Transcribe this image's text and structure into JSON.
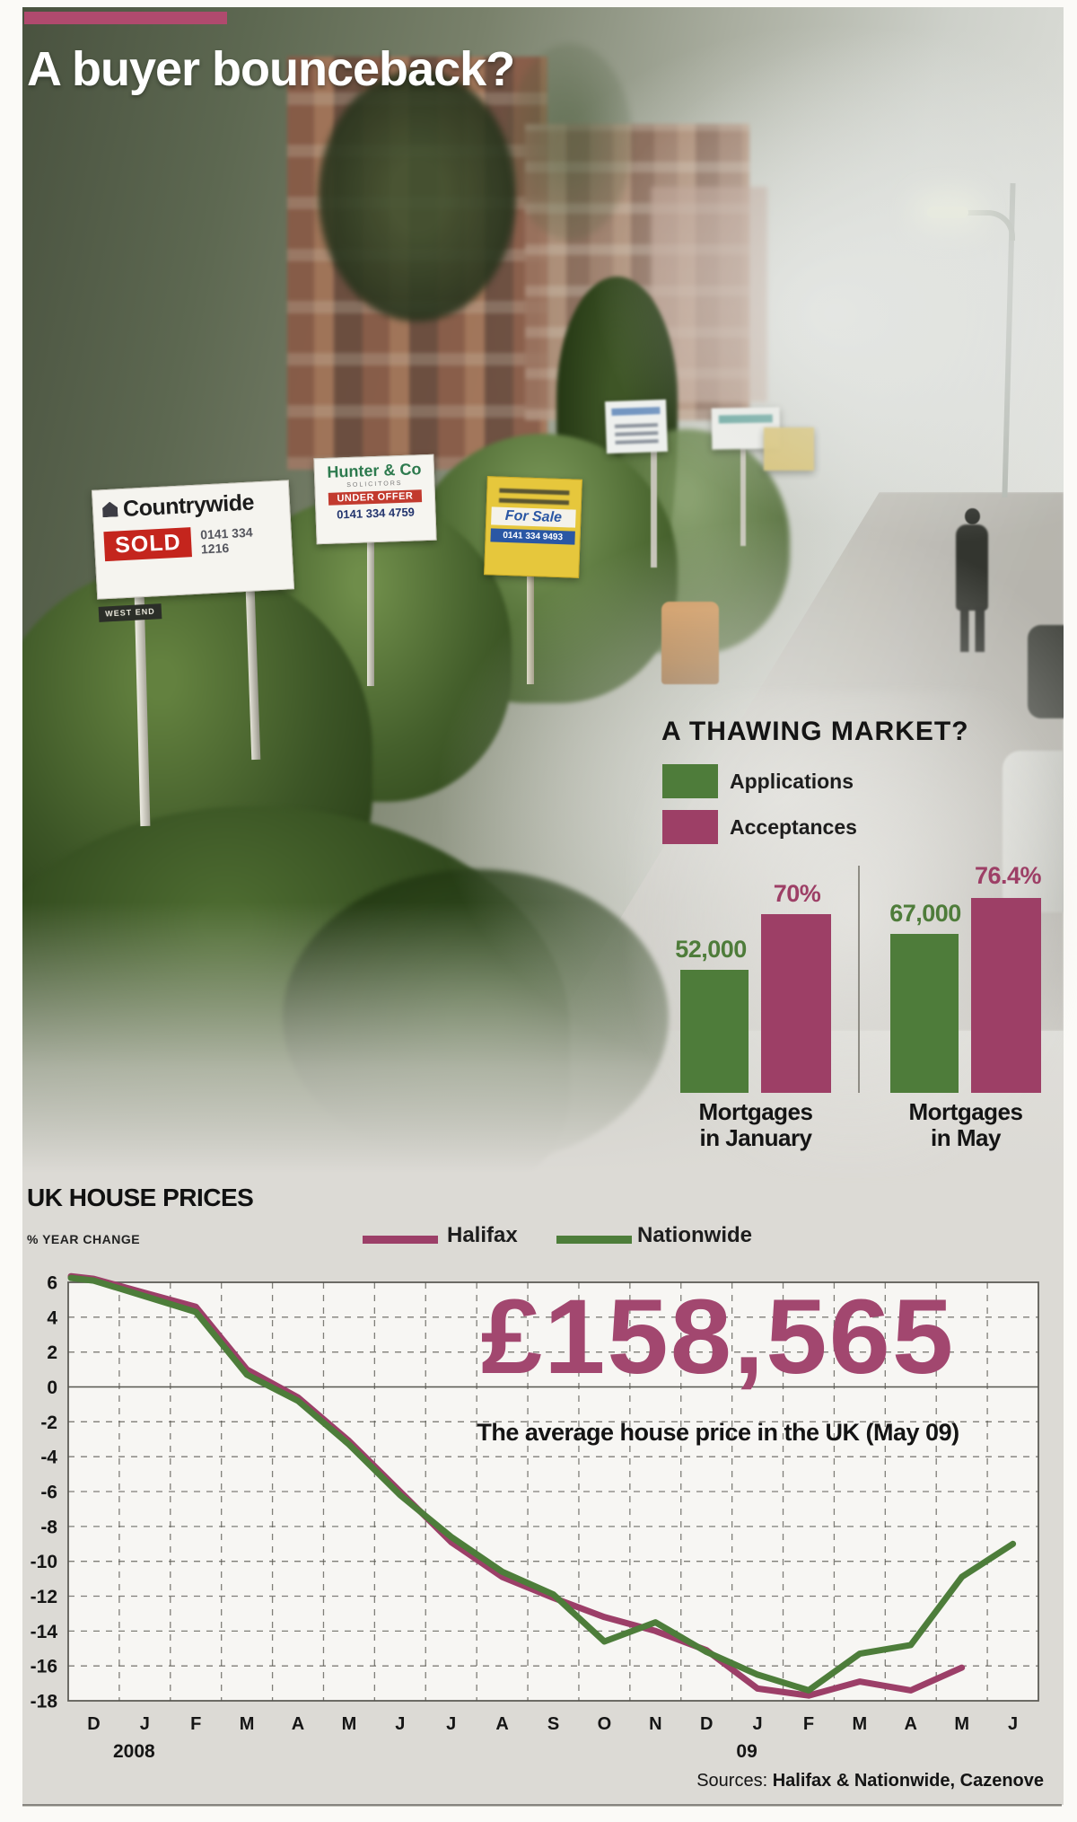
{
  "header": {
    "title": "A buyer bounceback?"
  },
  "photo": {
    "signs": {
      "countrywide": {
        "brand": "Countrywide",
        "status": "SOLD",
        "phone": "0141 334 1216",
        "area": "WEST END"
      },
      "hunter": {
        "brand": "Hunter & Co",
        "subtitle": "SOLICITORS",
        "status": "UNDER OFFER",
        "phone": "0141 334 4759"
      },
      "yellow": {
        "status": "For Sale",
        "phone": "0141 334 9493"
      }
    }
  },
  "thawing": {
    "title": "A THAWING MARKET?",
    "legend": [
      {
        "label": "Applications"
      },
      {
        "label": "Acceptances"
      }
    ],
    "colors": {
      "applications": "#4e7c3a",
      "acceptances": "#9d3f66"
    },
    "groups": [
      {
        "line1": "Mortgages",
        "line2": "in January",
        "values": [
          {
            "text": "52,000"
          },
          {
            "text": "70%"
          }
        ]
      },
      {
        "line1": "Mortgages",
        "line2": "in May",
        "values": [
          {
            "text": "67,000"
          },
          {
            "text": "76.4%"
          }
        ]
      }
    ]
  },
  "prices": {
    "title": "UK HOUSE PRICES",
    "axis_label": "% YEAR CHANGE",
    "legend": [
      {
        "label": "Halifax"
      },
      {
        "label": "Nationwide"
      }
    ],
    "big_number": "£158,565",
    "caption": "The average house price in the UK (May 09)",
    "sources_prefix": "Sources:",
    "sources": "Halifax & Nationwide, Cazenove",
    "year_left": "2008",
    "year_right": "09"
  },
  "chart_data": [
    {
      "type": "bar",
      "title": "A THAWING MARKET?",
      "groups": [
        "Mortgages in January",
        "Mortgages in May"
      ],
      "series": [
        {
          "name": "Applications",
          "unit": "count",
          "color": "#4e7c3a",
          "values": [
            52000,
            67000
          ]
        },
        {
          "name": "Acceptances",
          "unit": "%",
          "color": "#9d3f66",
          "values": [
            70,
            76.4
          ]
        }
      ],
      "value_labels": [
        [
          "52,000",
          "70%"
        ],
        [
          "67,000",
          "76.4%"
        ]
      ]
    },
    {
      "type": "line",
      "title": "UK HOUSE PRICES",
      "ylabel": "% YEAR CHANGE",
      "ylim": [
        -18,
        6
      ],
      "ytick_step": 2,
      "grid": "dashed, zero line solid",
      "legend_position": "top",
      "x": [
        "D",
        "J",
        "F",
        "M",
        "A",
        "M",
        "J",
        "J",
        "A",
        "S",
        "O",
        "N",
        "D",
        "J",
        "F",
        "M",
        "A",
        "M",
        "J"
      ],
      "x_year_labels": [
        {
          "text": "2008",
          "index": 1
        },
        {
          "text": "09",
          "index": 13
        }
      ],
      "series": [
        {
          "name": "Halifax",
          "color": "#9c3f68",
          "values": [
            6.2,
            5.4,
            4.6,
            1.0,
            -0.6,
            -3.1,
            -6.0,
            -8.9,
            -10.9,
            -12.1,
            -13.2,
            -14.0,
            -15.1,
            -17.3,
            -17.7,
            -16.9,
            -17.4,
            -16.1,
            null
          ]
        },
        {
          "name": "Nationwide",
          "color": "#4d7d3a",
          "values": [
            6.1,
            5.2,
            4.3,
            0.7,
            -0.8,
            -3.3,
            -6.2,
            -8.6,
            -10.6,
            -11.9,
            -14.6,
            -13.5,
            -15.2,
            -16.5,
            -17.4,
            -15.3,
            -14.8,
            -10.9,
            -9.0
          ]
        }
      ],
      "annotation": {
        "value": "£158,565",
        "caption": "The average house price in the UK (May 09)"
      },
      "sources": "Halifax & Nationwide, Cazenove"
    }
  ]
}
